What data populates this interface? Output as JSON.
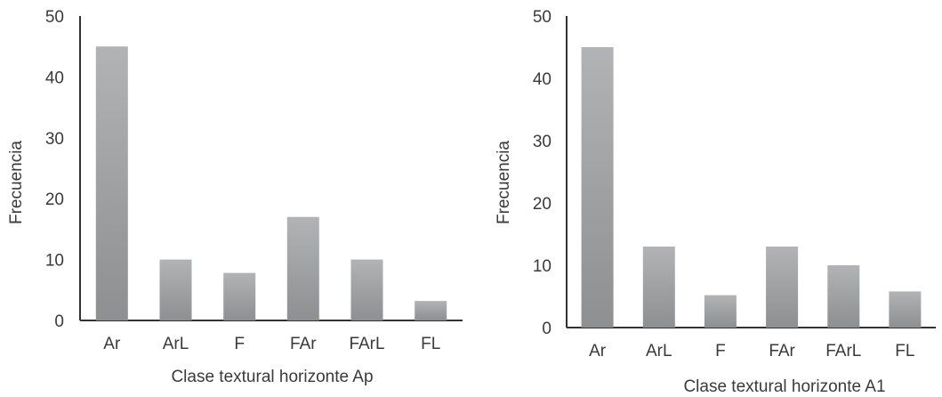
{
  "chart_data": [
    {
      "type": "bar",
      "title": "",
      "xlabel": "Clase textural horizonte Ap",
      "ylabel": "Frecuencia",
      "ylim": [
        0,
        50
      ],
      "yticks": [
        "0",
        "10",
        "20",
        "30",
        "40",
        "50"
      ],
      "categories": [
        "Ar",
        "ArL",
        "F",
        "FAr",
        "FArL",
        "FL"
      ],
      "values": [
        45,
        10,
        7.8,
        17,
        10,
        3.2
      ],
      "grid": false,
      "bar_color": "#a8a9ab"
    },
    {
      "type": "bar",
      "title": "",
      "xlabel": "Clase textural horizonte A1",
      "ylabel": "Frecuencia",
      "ylim": [
        0,
        50
      ],
      "yticks": [
        "0",
        "10",
        "20",
        "30",
        "40",
        "50"
      ],
      "categories": [
        "Ar",
        "ArL",
        "F",
        "FAr",
        "FArL",
        "FL"
      ],
      "values": [
        45,
        13,
        5.2,
        13,
        10,
        5.8
      ],
      "grid": false,
      "bar_color": "#a8a9ab"
    }
  ]
}
